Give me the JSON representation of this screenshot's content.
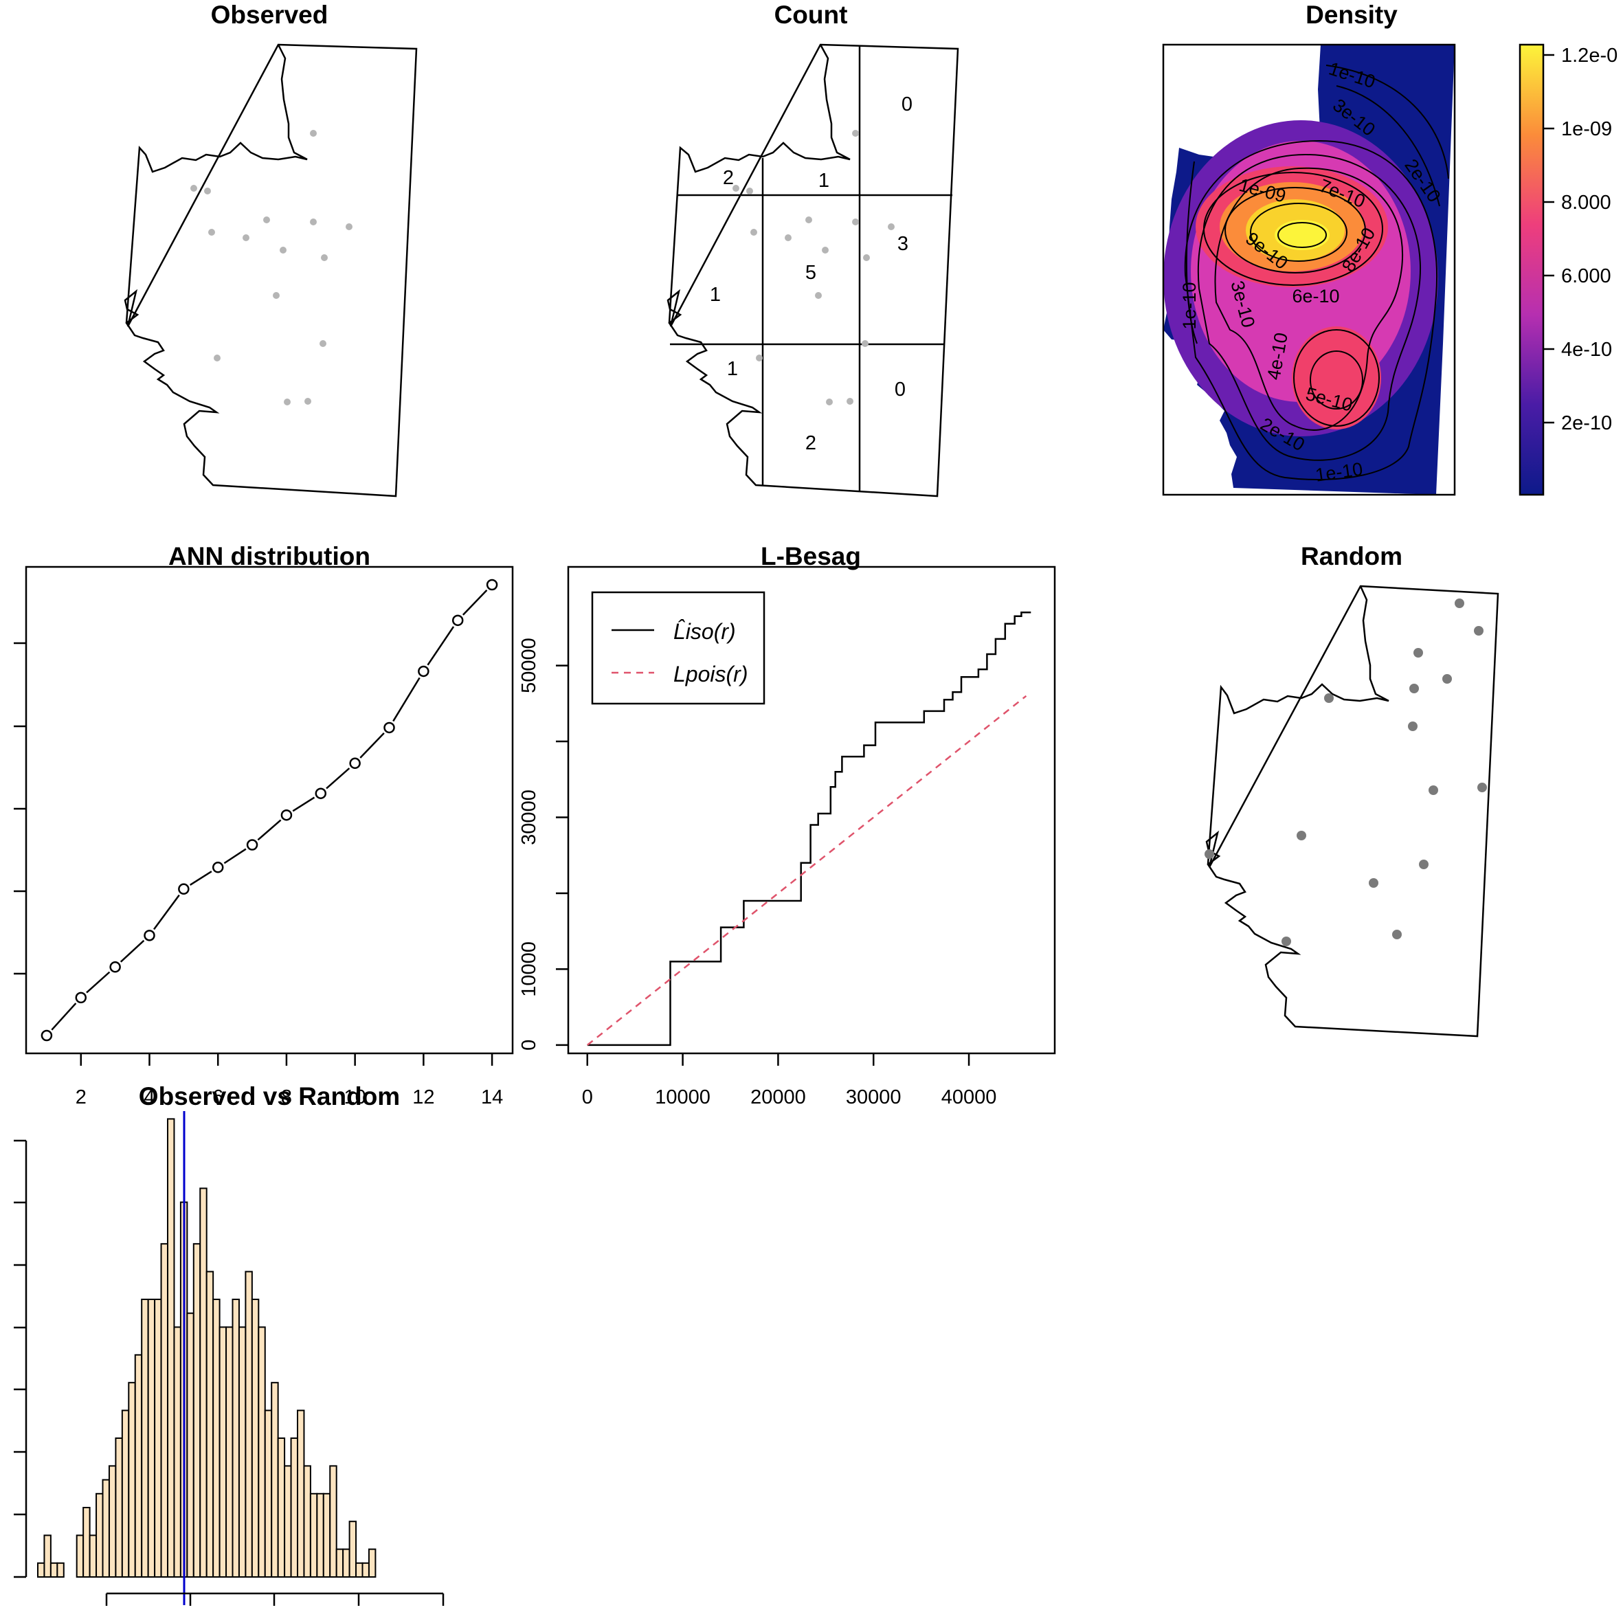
{
  "panels": {
    "observed": {
      "title": "Observed"
    },
    "count": {
      "title": "Count",
      "quadrat_counts": [
        "2",
        "1",
        "0",
        "1",
        "5",
        "3",
        "1",
        "2",
        "0"
      ]
    },
    "density": {
      "title": "Density",
      "colorbar_labels": [
        "1.2e-0",
        "1e-09",
        "8.000",
        "6.000",
        "4e-10",
        "2e-10"
      ],
      "contour_labels": [
        "1e-10",
        "3e-10",
        "2e-10",
        "1e-09",
        "7e-10",
        "9e-10",
        "8e-10",
        "6e-10",
        "1e-10",
        "3e-10",
        "4e-10",
        "5e-10",
        "2e-10",
        "1e-10"
      ],
      "colors": [
        "#0d1a8a",
        "#6a1fb0",
        "#d63ab2",
        "#f0406a",
        "#fb8c3a",
        "#f9d22c",
        "#fcf43a"
      ]
    },
    "random": {
      "title": "Random"
    }
  },
  "chart_data": [
    {
      "type": "line",
      "title": "ANN distribution",
      "x": [
        1,
        2,
        3,
        4,
        5,
        6,
        7,
        8,
        9,
        10,
        11,
        12,
        13,
        14
      ],
      "values": [
        0,
        0.084,
        0.152,
        0.222,
        0.325,
        0.373,
        0.423,
        0.489,
        0.537,
        0.604,
        0.683,
        0.808,
        0.921,
        1.0
      ],
      "xticks": [
        "2",
        "4",
        "6",
        "8",
        "10",
        "12",
        "14"
      ],
      "xlim": [
        0.4,
        14.6
      ]
    },
    {
      "type": "line",
      "title": "L-Besag",
      "xlim": [
        -2000,
        49000
      ],
      "ylim": [
        -1100,
        63000
      ],
      "xticks": [
        "0",
        "10000",
        "20000",
        "30000",
        "40000"
      ],
      "yticks": [
        "0",
        "10000",
        "30000",
        "50000"
      ],
      "series": [
        {
          "name": "L̂iso(r)",
          "color": "#000000",
          "points": [
            [
              0,
              0
            ],
            [
              8700,
              0
            ],
            [
              8700,
              11000
            ],
            [
              14000,
              11000
            ],
            [
              14000,
              15500
            ],
            [
              16400,
              15500
            ],
            [
              16400,
              19000
            ],
            [
              22400,
              19000
            ],
            [
              22400,
              24000
            ],
            [
              23400,
              24000
            ],
            [
              23400,
              29000
            ],
            [
              24200,
              29000
            ],
            [
              24200,
              30500
            ],
            [
              25500,
              30500
            ],
            [
              25500,
              34000
            ],
            [
              26000,
              34000
            ],
            [
              26000,
              36000
            ],
            [
              26700,
              36000
            ],
            [
              26700,
              38000
            ],
            [
              29000,
              38000
            ],
            [
              29000,
              39500
            ],
            [
              30200,
              39500
            ],
            [
              30200,
              42500
            ],
            [
              35300,
              42500
            ],
            [
              35300,
              44000
            ],
            [
              37400,
              44000
            ],
            [
              37400,
              45500
            ],
            [
              38300,
              45500
            ],
            [
              38300,
              46500
            ],
            [
              39200,
              46500
            ],
            [
              39200,
              48500
            ],
            [
              41000,
              48500
            ],
            [
              41000,
              49500
            ],
            [
              41900,
              49500
            ],
            [
              41900,
              51500
            ],
            [
              42800,
              51500
            ],
            [
              42800,
              53500
            ],
            [
              43800,
              53500
            ],
            [
              43800,
              55500
            ],
            [
              44800,
              55500
            ],
            [
              44800,
              56500
            ],
            [
              45500,
              56500
            ],
            [
              45500,
              57000
            ],
            [
              46500,
              57000
            ]
          ]
        },
        {
          "name": "Lpois(r)",
          "color": "#df536b",
          "dashed": true,
          "points": [
            [
              0,
              0
            ],
            [
              46000,
              46000
            ]
          ]
        }
      ]
    },
    {
      "type": "bar",
      "title": "Observed vs Random",
      "observed_line_color": "#0000cd",
      "bar_color": "#fce4c0",
      "values": [
        1,
        3,
        1,
        1,
        0,
        0,
        3,
        5,
        3,
        6,
        7,
        8,
        10,
        12,
        14,
        16,
        20,
        20,
        20,
        24,
        33,
        18,
        27,
        19,
        24,
        28,
        22,
        20,
        18,
        18,
        20,
        18,
        22,
        20,
        18,
        12,
        14,
        10,
        8,
        10,
        12,
        8,
        6,
        6,
        6,
        8,
        2,
        2,
        4,
        1,
        1,
        2
      ]
    }
  ]
}
